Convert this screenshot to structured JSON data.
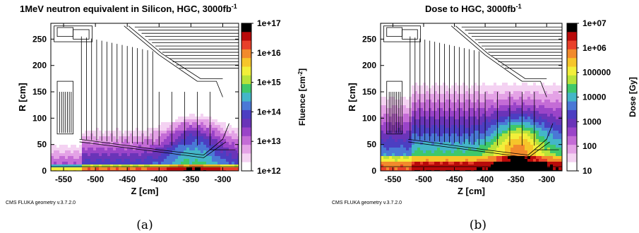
{
  "chart_data": [
    {
      "type": "heatmap",
      "panel_label": "(a)",
      "title": "1MeV neutron equivalent in Silicon, HGC, 3000fb",
      "title_superscript": "-1",
      "xlabel": "Z [cm]",
      "ylabel": "R [cm]",
      "colorbar_label": "Fluence [cm",
      "colorbar_label_superscript": "-2",
      "colorbar_label_close": "]",
      "xlim": [
        -570,
        -275
      ],
      "ylim": [
        0,
        280
      ],
      "x_ticks": [
        -550,
        -500,
        -450,
        -400,
        -350,
        -300
      ],
      "y_ticks": [
        0,
        50,
        100,
        150,
        200,
        250
      ],
      "x_tick_labels": [
        "-550",
        "-500",
        "-450",
        "-400",
        "-350",
        "-300"
      ],
      "y_tick_labels": [
        "0",
        "50",
        "100",
        "150",
        "200",
        "250"
      ],
      "colorbar_scale": "log",
      "colorbar_range": [
        1000000000000.0,
        1e+17
      ],
      "colorbar_ticks": [
        "1e+17",
        "1e+16",
        "1e+15",
        "1e+14",
        "1e+13",
        "1e+12"
      ],
      "colors": [
        "#000000",
        "#b80a0a",
        "#e8402a",
        "#f28a2c",
        "#f6c52a",
        "#f2ef3a",
        "#b8e33a",
        "#3fc86a",
        "#44b6c8",
        "#4a78d6",
        "#4c3ec2",
        "#6a34b8",
        "#9a44c8",
        "#c46cd6",
        "#e4a2e6",
        "#f4d2f2",
        "#ffffff"
      ],
      "footnote": "CMS FLUKA geometry v.3.7.2.0"
    },
    {
      "type": "heatmap",
      "panel_label": "(b)",
      "title": "Dose to HGC, 3000fb",
      "title_superscript": "-1",
      "xlabel": "Z [cm]",
      "ylabel": "R [cm]",
      "colorbar_label": "Dose [Gy]",
      "colorbar_label_superscript": "",
      "colorbar_label_close": "",
      "xlim": [
        -570,
        -275
      ],
      "ylim": [
        0,
        280
      ],
      "x_ticks": [
        -550,
        -500,
        -450,
        -400,
        -350,
        -300
      ],
      "y_ticks": [
        0,
        50,
        100,
        150,
        200,
        250
      ],
      "x_tick_labels": [
        "-550",
        "-500",
        "-450",
        "-400",
        "-350",
        "-300"
      ],
      "y_tick_labels": [
        "0",
        "50",
        "100",
        "150",
        "200",
        "250"
      ],
      "colorbar_scale": "log",
      "colorbar_range": [
        10,
        10000000.0
      ],
      "colorbar_ticks": [
        "1e+07",
        "1e+06",
        "100000",
        "10000",
        "1000",
        "100",
        "10"
      ],
      "colors": [
        "#000000",
        "#b80a0a",
        "#e8402a",
        "#f28a2c",
        "#f6c52a",
        "#f2ef3a",
        "#b8e33a",
        "#3fc86a",
        "#44b6c8",
        "#4a78d6",
        "#4c3ec2",
        "#6a34b8",
        "#9a44c8",
        "#c46cd6",
        "#e4a2e6",
        "#f4d2f2",
        "#ffffff"
      ],
      "footnote": "CMS FLUKA geometry v.3.7.2.0"
    }
  ]
}
